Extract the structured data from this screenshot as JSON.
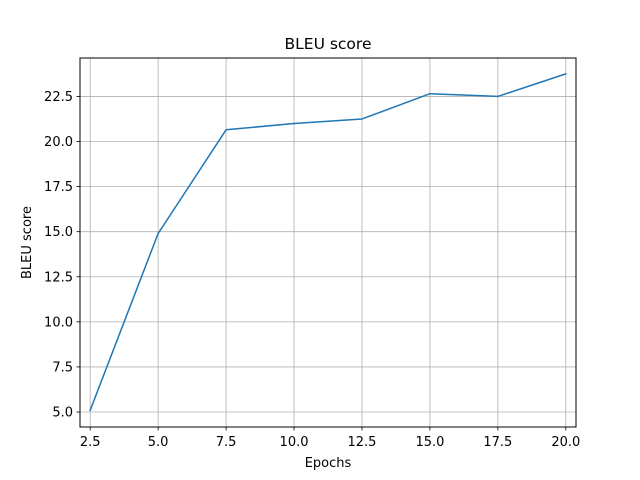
{
  "chart_data": {
    "type": "line",
    "title": "BLEU score",
    "xlabel": "Epochs",
    "ylabel": "BLEU score",
    "xlim": [
      2.125,
      20.375
    ],
    "ylim": [
      4.17,
      24.63
    ],
    "grid": true,
    "xticks": [
      2.5,
      5.0,
      7.5,
      10.0,
      12.5,
      15.0,
      17.5,
      20.0
    ],
    "xtick_labels": [
      "2.5",
      "5.0",
      "7.5",
      "10.0",
      "12.5",
      "15.0",
      "17.5",
      "20.0"
    ],
    "yticks": [
      5.0,
      7.5,
      10.0,
      12.5,
      15.0,
      17.5,
      20.0,
      22.5
    ],
    "ytick_labels": [
      "5.0",
      "7.5",
      "10.0",
      "12.5",
      "15.0",
      "17.5",
      "20.0",
      "22.5"
    ],
    "series": [
      {
        "color": "#1f77b4",
        "x": [
          2.5,
          5.0,
          7.5,
          10.0,
          12.5,
          15.0,
          17.5,
          20.0
        ],
        "y": [
          5.1,
          14.9,
          20.65,
          21.0,
          21.25,
          22.65,
          22.5,
          23.75
        ]
      }
    ]
  }
}
